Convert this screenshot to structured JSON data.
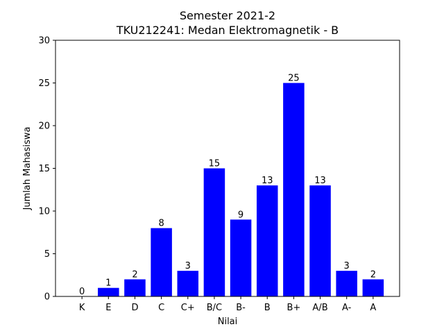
{
  "chart_data": {
    "type": "bar",
    "title": "Semester 2021-2",
    "subtitle": "TKU212241: Medan Elektromagnetik - B",
    "xlabel": "Nilai",
    "ylabel": "Jumlah Mahasiswa",
    "categories": [
      "K",
      "E",
      "D",
      "C",
      "C+",
      "B/C",
      "B-",
      "B",
      "B+",
      "A/B",
      "A-",
      "A"
    ],
    "values": [
      0,
      1,
      2,
      8,
      3,
      15,
      9,
      13,
      25,
      13,
      3,
      2
    ],
    "ylim": [
      0,
      30
    ],
    "yticks": [
      0,
      5,
      10,
      15,
      20,
      25,
      30
    ],
    "bar_color": "#0000ff",
    "grid": false,
    "data_labels": true
  }
}
